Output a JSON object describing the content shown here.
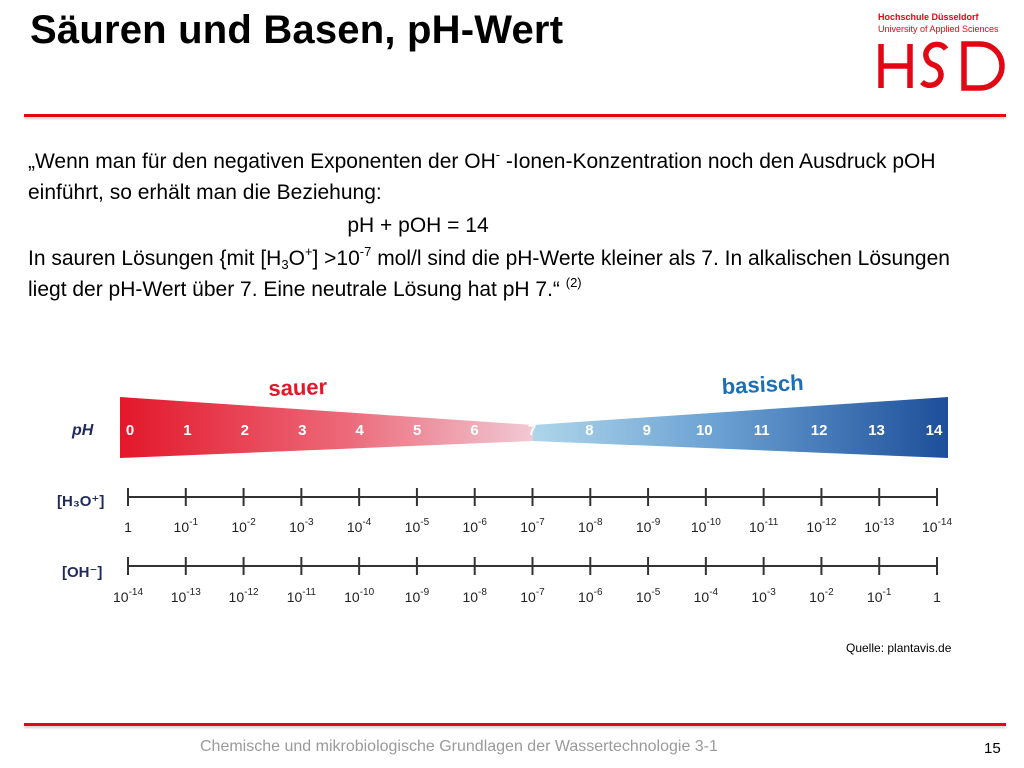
{
  "header": {
    "title": "Säuren und Basen, pH-Wert",
    "logo": {
      "line1": "Hochschule Düsseldorf",
      "line2": "University of Applied Sciences",
      "mark": "HSD"
    }
  },
  "content": {
    "p1_a": "„Wenn man für den negativen Exponenten der OH",
    "p1_sup": "-",
    "p1_b": " -Ionen-Konzentration noch den Ausdruck pOH einführt, so erhält man die Beziehung:",
    "equation": "pH + pOH = 14",
    "p2_a": "In sauren Lösungen {mit [H",
    "p2_sub": "3",
    "p2_b": "O",
    "p2_sup1": "+",
    "p2_c": "] >10",
    "p2_sup2": "-7",
    "p2_d": " mol/l sind die pH-Werte kleiner als 7. In alkalischen Lösungen liegt der pH-Wert über 7. Eine neutrale Lösung hat pH 7.“ ",
    "p2_ref": "(2)"
  },
  "scale": {
    "acid_label": "sauer",
    "base_label": "basisch",
    "ph_label": "pH",
    "ph_values": [
      "0",
      "1",
      "2",
      "3",
      "4",
      "5",
      "6",
      "7",
      "8",
      "9",
      "10",
      "11",
      "12",
      "13",
      "14"
    ],
    "h3o_label": "[H₃O⁺]",
    "oh_label": "[OH⁻]",
    "h3o_values": [
      {
        "base": "1",
        "exp": ""
      },
      {
        "base": "10",
        "exp": "-1"
      },
      {
        "base": "10",
        "exp": "-2"
      },
      {
        "base": "10",
        "exp": "-3"
      },
      {
        "base": "10",
        "exp": "-4"
      },
      {
        "base": "10",
        "exp": "-5"
      },
      {
        "base": "10",
        "exp": "-6"
      },
      {
        "base": "10",
        "exp": "-7"
      },
      {
        "base": "10",
        "exp": "-8"
      },
      {
        "base": "10",
        "exp": "-9"
      },
      {
        "base": "10",
        "exp": "-10"
      },
      {
        "base": "10",
        "exp": "-11"
      },
      {
        "base": "10",
        "exp": "-12"
      },
      {
        "base": "10",
        "exp": "-13"
      },
      {
        "base": "10",
        "exp": "-14"
      }
    ],
    "oh_values": [
      {
        "base": "10",
        "exp": "-14"
      },
      {
        "base": "10",
        "exp": "-13"
      },
      {
        "base": "10",
        "exp": "-12"
      },
      {
        "base": "10",
        "exp": "-11"
      },
      {
        "base": "10",
        "exp": "-10"
      },
      {
        "base": "10",
        "exp": "-9"
      },
      {
        "base": "10",
        "exp": "-8"
      },
      {
        "base": "10",
        "exp": "-7"
      },
      {
        "base": "10",
        "exp": "-6"
      },
      {
        "base": "10",
        "exp": "-5"
      },
      {
        "base": "10",
        "exp": "-4"
      },
      {
        "base": "10",
        "exp": "-3"
      },
      {
        "base": "10",
        "exp": "-2"
      },
      {
        "base": "10",
        "exp": "-1"
      },
      {
        "base": "1",
        "exp": ""
      }
    ],
    "colors": {
      "acid": "#e3172a",
      "neutral": "#f1c9d4",
      "neutral_base": "#aed6ea",
      "base": "#1d4e9a",
      "label_dark": "#1f2a5a"
    }
  },
  "source": "Quelle: plantavis.de",
  "footer": {
    "course": "Chemische und mikrobiologische Grundlagen der Wassertechnologie 3-1",
    "page": "15"
  },
  "colors": {
    "brand": "#e30613",
    "footer_text": "#9a9a9a"
  }
}
